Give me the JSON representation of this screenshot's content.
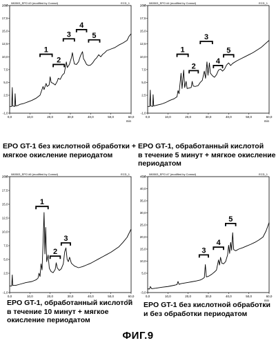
{
  "figure_label": "ФИГ.9",
  "chart_data": [
    {
      "type": "line",
      "header_left": "080503_EPO #3 (modified by Conrad)",
      "header_right": "ECD_1",
      "y_unit": "nA",
      "x_unit": "min",
      "xlim": [
        0,
        60
      ],
      "ylim": [
        -1,
        20
      ],
      "y_ticks": [
        "-1,0",
        "2,5",
        "5,0",
        "7,5",
        "10,0",
        "12,5",
        "15,0",
        "17,5",
        "20,0"
      ],
      "x_ticks": [
        "0,0",
        "10,0",
        "20,0",
        "30,0",
        "40,0",
        "50,0",
        "60,0"
      ],
      "trace": [
        [
          0,
          0.3
        ],
        [
          1,
          0.3
        ],
        [
          1.3,
          4
        ],
        [
          1.5,
          0.4
        ],
        [
          2.5,
          0.3
        ],
        [
          2.7,
          2.8
        ],
        [
          3,
          0.4
        ],
        [
          4,
          0.5
        ],
        [
          5,
          0.7
        ],
        [
          7,
          0.9
        ],
        [
          9,
          1.2
        ],
        [
          11,
          1.5
        ],
        [
          13,
          1.9
        ],
        [
          15,
          2.5
        ],
        [
          16.5,
          4.2
        ],
        [
          17,
          3.6
        ],
        [
          18,
          4.8
        ],
        [
          18.5,
          4.2
        ],
        [
          19.5,
          4.5
        ],
        [
          20,
          6.1
        ],
        [
          20.5,
          5.0
        ],
        [
          21.5,
          4.8
        ],
        [
          22.5,
          4.5
        ],
        [
          23.5,
          5.2
        ],
        [
          24,
          5.8
        ],
        [
          25,
          5.6
        ],
        [
          26,
          6.4
        ],
        [
          27,
          6.8
        ],
        [
          28,
          9.0
        ],
        [
          28.5,
          7.9
        ],
        [
          29.5,
          8.5
        ],
        [
          30.5,
          9.8
        ],
        [
          31,
          10.8
        ],
        [
          31.5,
          9.5
        ],
        [
          32,
          8.6
        ],
        [
          33,
          8.5
        ],
        [
          34,
          9.0
        ],
        [
          35,
          10.2
        ],
        [
          36,
          11.0
        ],
        [
          36.5,
          9.6
        ],
        [
          37,
          9.3
        ],
        [
          38,
          8.5
        ],
        [
          39,
          8.3
        ],
        [
          40,
          8.4
        ],
        [
          41,
          8.8
        ],
        [
          42,
          9.4
        ],
        [
          43,
          9.8
        ],
        [
          44,
          10.4
        ],
        [
          45,
          10.0
        ],
        [
          46,
          10.5
        ],
        [
          47,
          10.8
        ],
        [
          48,
          11.2
        ],
        [
          50,
          11.5
        ],
        [
          52,
          11.8
        ],
        [
          54,
          12.3
        ],
        [
          56,
          12.7
        ],
        [
          58,
          13.2
        ],
        [
          59,
          14.0
        ],
        [
          60,
          14.5
        ]
      ],
      "peaks": [
        {
          "label": "1",
          "x_start": 15,
          "x_end": 21,
          "y": 10.5
        },
        {
          "label": "2",
          "x_start": 21.5,
          "x_end": 27,
          "y": 8.5
        },
        {
          "label": "3",
          "x_start": 26.5,
          "x_end": 32,
          "y": 13.5
        },
        {
          "label": "4",
          "x_start": 33,
          "x_end": 38,
          "y": 15.3
        },
        {
          "label": "5",
          "x_start": 39,
          "x_end": 44.5,
          "y": 13.3
        }
      ]
    },
    {
      "type": "line",
      "header_left": "080503_EPO #4 (modified by Conrad)",
      "header_right": "ECD_1",
      "y_unit": "nA",
      "x_unit": "min",
      "xlim": [
        0,
        60
      ],
      "ylim": [
        -1,
        20
      ],
      "y_ticks": [
        "-1,0",
        "2,5",
        "5,0",
        "7,5",
        "10,0",
        "12,5",
        "15,0",
        "17,5",
        "20,0"
      ],
      "x_ticks": [
        "0,0",
        "10,0",
        "20,0",
        "30,0",
        "40,0",
        "50,0",
        "60,0"
      ],
      "trace": [
        [
          0,
          0.3
        ],
        [
          1,
          0.3
        ],
        [
          1.3,
          3.5
        ],
        [
          1.5,
          0.4
        ],
        [
          2.5,
          0.3
        ],
        [
          2.7,
          2.6
        ],
        [
          3,
          0.4
        ],
        [
          5,
          0.6
        ],
        [
          7,
          0.8
        ],
        [
          9,
          1.1
        ],
        [
          11,
          1.5
        ],
        [
          13,
          1.8
        ],
        [
          14.5,
          2.2
        ],
        [
          15,
          3.4
        ],
        [
          15.5,
          2.8
        ],
        [
          16.5,
          6.8
        ],
        [
          17,
          3.8
        ],
        [
          17.8,
          7.4
        ],
        [
          18.3,
          4.0
        ],
        [
          19,
          5.2
        ],
        [
          19.5,
          3.8
        ],
        [
          20.5,
          3.9
        ],
        [
          21.5,
          4.0
        ],
        [
          22,
          5.2
        ],
        [
          22.5,
          4.3
        ],
        [
          23.5,
          4.2
        ],
        [
          25,
          4.4
        ],
        [
          26,
          5.0
        ],
        [
          27,
          5.4
        ],
        [
          28,
          7.2
        ],
        [
          28.6,
          5.8
        ],
        [
          29.3,
          9.0
        ],
        [
          29.8,
          6.4
        ],
        [
          30.5,
          8.8
        ],
        [
          31,
          6.8
        ],
        [
          32,
          6.3
        ],
        [
          33,
          6.0
        ],
        [
          34,
          6.5
        ],
        [
          35,
          7.4
        ],
        [
          36,
          7.6
        ],
        [
          37,
          7.2
        ],
        [
          38,
          7.6
        ],
        [
          39,
          8.4
        ],
        [
          40,
          8.8
        ],
        [
          41,
          8.3
        ],
        [
          42,
          8.7
        ],
        [
          44,
          9.2
        ],
        [
          46,
          9.6
        ],
        [
          48,
          10.0
        ],
        [
          50,
          10.4
        ],
        [
          52,
          10.8
        ],
        [
          54,
          11.3
        ],
        [
          56,
          11.8
        ],
        [
          58,
          12.5
        ],
        [
          60,
          13.2
        ]
      ],
      "peaks": [
        {
          "label": "1",
          "x_start": 14.5,
          "x_end": 20,
          "y": 10.5
        },
        {
          "label": "2",
          "x_start": 20.5,
          "x_end": 25,
          "y": 7.3
        },
        {
          "label": "3",
          "x_start": 26,
          "x_end": 32,
          "y": 13.0
        },
        {
          "label": "4",
          "x_start": 32.5,
          "x_end": 37,
          "y": 8.3
        },
        {
          "label": "5",
          "x_start": 37.5,
          "x_end": 42.5,
          "y": 10.4
        }
      ]
    },
    {
      "type": "line",
      "header_left": "080503_EPO #6 (modified by Conrad)",
      "header_right": "ECD_1",
      "y_unit": "nA",
      "x_unit": "min",
      "xlim": [
        0,
        60
      ],
      "ylim": [
        -1,
        20
      ],
      "y_ticks": [
        "-1,0",
        "2,5",
        "5,0",
        "7,5",
        "10,0",
        "12,5",
        "15,0",
        "17,5",
        "20,0"
      ],
      "x_ticks": [
        "0,0",
        "10,0",
        "20,0",
        "30,0",
        "40,0",
        "50,0",
        "60,0"
      ],
      "trace": [
        [
          0,
          0.2
        ],
        [
          1,
          0.2
        ],
        [
          1.3,
          2.2
        ],
        [
          1.5,
          0.3
        ],
        [
          3,
          0.3
        ],
        [
          5,
          0.5
        ],
        [
          8,
          0.8
        ],
        [
          11,
          1.0
        ],
        [
          13,
          1.3
        ],
        [
          14,
          1.6
        ],
        [
          14.5,
          2.5
        ],
        [
          15,
          1.9
        ],
        [
          15.5,
          4.2
        ],
        [
          16,
          3.1
        ],
        [
          16.5,
          8.0
        ],
        [
          17,
          13.5
        ],
        [
          17.4,
          6.0
        ],
        [
          17.8,
          10.8
        ],
        [
          18.3,
          4.6
        ],
        [
          19,
          5.8
        ],
        [
          19.6,
          3.4
        ],
        [
          20.5,
          2.8
        ],
        [
          21.5,
          2.6
        ],
        [
          22.5,
          3.2
        ],
        [
          23,
          4.4
        ],
        [
          23.5,
          3.5
        ],
        [
          24.5,
          3.0
        ],
        [
          25.5,
          3.3
        ],
        [
          26.5,
          4.2
        ],
        [
          27.2,
          6.4
        ],
        [
          27.8,
          7.1
        ],
        [
          28.4,
          5.0
        ],
        [
          29,
          4.6
        ],
        [
          29.6,
          5.4
        ],
        [
          30.5,
          4.3
        ],
        [
          32,
          3.8
        ],
        [
          34,
          3.5
        ],
        [
          36,
          3.7
        ],
        [
          38,
          4.0
        ],
        [
          40,
          4.3
        ],
        [
          42,
          4.7
        ],
        [
          44,
          5.1
        ],
        [
          46,
          5.5
        ],
        [
          48,
          5.9
        ],
        [
          50,
          6.3
        ],
        [
          52,
          6.8
        ],
        [
          54,
          7.3
        ],
        [
          56,
          8.1
        ],
        [
          58,
          9.0
        ],
        [
          60,
          10.5
        ]
      ],
      "peaks": [
        {
          "label": "1",
          "x_start": 13,
          "x_end": 19,
          "y": 14.6
        },
        {
          "label": "2",
          "x_start": 20,
          "x_end": 25,
          "y": 5.6
        },
        {
          "label": "3",
          "x_start": 25.5,
          "x_end": 30,
          "y": 8.0
        }
      ]
    },
    {
      "type": "line",
      "header_left": "080503_EPO #7 (modified by Conrad)",
      "header_right": "ECD_1",
      "y_unit": "nA",
      "x_unit": "min",
      "xlim": [
        0,
        60
      ],
      "ylim": [
        -3,
        45
      ],
      "y_ticks": [
        "-3,0",
        "5,0",
        "10,0",
        "15,0",
        "20,0",
        "25,0",
        "30,0",
        "35,0",
        "40,0",
        "45,0"
      ],
      "x_ticks": [
        "0,0",
        "10,0",
        "20,0",
        "30,0",
        "40,0",
        "50,0",
        "60,0"
      ],
      "trace": [
        [
          0,
          -1.5
        ],
        [
          1,
          -1.5
        ],
        [
          1.3,
          -0.5
        ],
        [
          2,
          -1.4
        ],
        [
          4,
          -1.2
        ],
        [
          7,
          -0.8
        ],
        [
          10,
          -0.5
        ],
        [
          13,
          0.0
        ],
        [
          14.5,
          0.3
        ],
        [
          15,
          1.6
        ],
        [
          15.5,
          0.4
        ],
        [
          16.5,
          0.7
        ],
        [
          18,
          0.9
        ],
        [
          20,
          1.2
        ],
        [
          22,
          1.5
        ],
        [
          24,
          1.8
        ],
        [
          26,
          2.2
        ],
        [
          27,
          2.6
        ],
        [
          28,
          3.2
        ],
        [
          28.5,
          8.6
        ],
        [
          29,
          3.5
        ],
        [
          30,
          3.7
        ],
        [
          31,
          4.2
        ],
        [
          32,
          4.8
        ],
        [
          33,
          5.5
        ],
        [
          34,
          6.3
        ],
        [
          35,
          10.5
        ],
        [
          35.5,
          8.4
        ],
        [
          36,
          11.6
        ],
        [
          36.6,
          9.2
        ],
        [
          37.5,
          8.9
        ],
        [
          38.5,
          9.8
        ],
        [
          39.5,
          12.6
        ],
        [
          40,
          16.6
        ],
        [
          40.5,
          13.2
        ],
        [
          41,
          17.8
        ],
        [
          41.5,
          14.5
        ],
        [
          42,
          21.8
        ],
        [
          42.5,
          14.8
        ],
        [
          43.5,
          14.3
        ],
        [
          45,
          15.0
        ],
        [
          47,
          15.6
        ],
        [
          49,
          16.3
        ],
        [
          51,
          17.0
        ],
        [
          53,
          17.8
        ],
        [
          55,
          18.8
        ],
        [
          57,
          20.0
        ],
        [
          58.5,
          22.5
        ],
        [
          60,
          26.0
        ]
      ],
      "peaks": [
        {
          "label": "3",
          "x_start": 25.5,
          "x_end": 30,
          "y": 12.6
        },
        {
          "label": "4",
          "x_start": 32.5,
          "x_end": 37.5,
          "y": 15.8
        },
        {
          "label": "5",
          "x_start": 38.5,
          "x_end": 43.5,
          "y": 25.6
        }
      ]
    }
  ],
  "captions": [
    [
      "EPO GT-1 без кислотной обработки +",
      "мягкое окисление периодатом"
    ],
    [
      "EPO GT-1, обработанный кислотой",
      "в течение 5 минут + мягкое окисление",
      "периодатом"
    ],
    [
      "EPO GT-1, обработанный кислотой",
      "в течение 10 минут + мягкое",
      "окисление периодатом"
    ],
    [
      "EPO GT-1 без кислотной обработки",
      "и без обработки периодатом"
    ]
  ]
}
